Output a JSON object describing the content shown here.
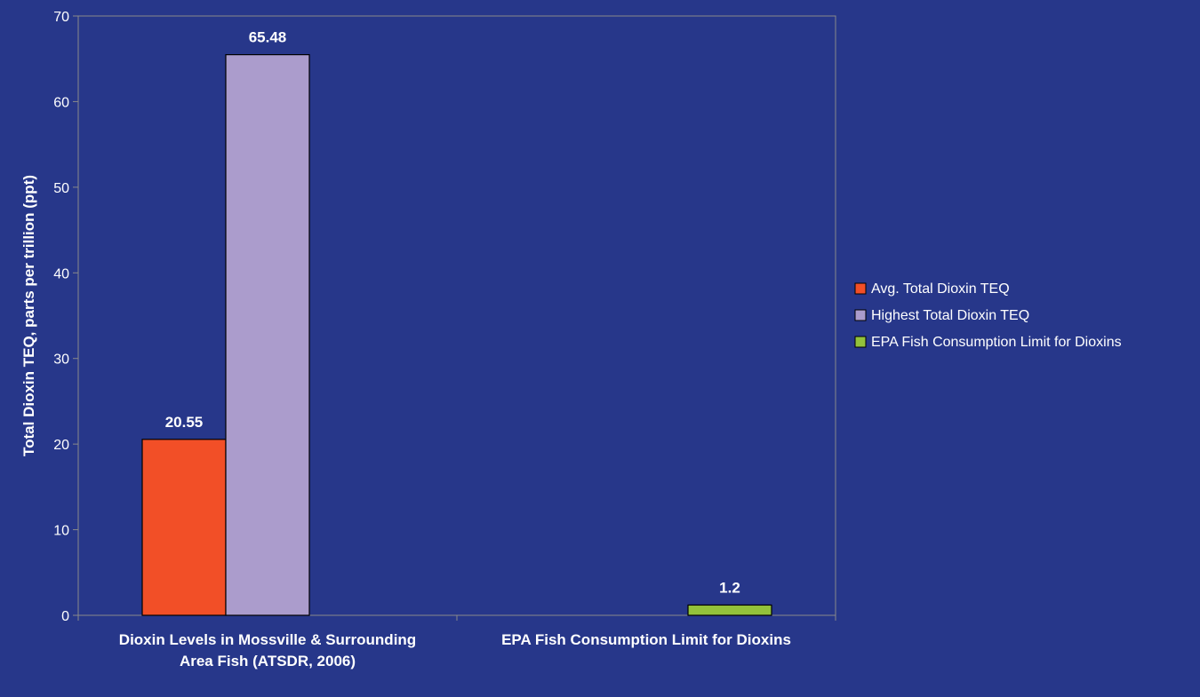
{
  "colors": {
    "background": "#27378a",
    "axis": "#8a8a8a",
    "text": "#ffffff",
    "bar_outline": "#000000"
  },
  "chart_data": {
    "type": "bar",
    "ylabel": "Total Dioxin TEQ, parts per trillion (ppt)",
    "ylim": [
      0,
      70
    ],
    "yticks": [
      0,
      10,
      20,
      30,
      40,
      50,
      60,
      70
    ],
    "grid": false,
    "legend_position": "right",
    "categories": [
      [
        "Dioxin Levels in Mossville & Surrounding",
        "Area Fish  (ATSDR, 2006)"
      ],
      [
        "EPA Fish Consumption Limit for Dioxins"
      ]
    ],
    "series": [
      {
        "name": "Avg. Total Dioxin TEQ",
        "color": "#f24f27",
        "values": [
          20.55,
          null
        ],
        "labels": [
          "20.55",
          null
        ]
      },
      {
        "name": "Highest Total Dioxin TEQ",
        "color": "#ab9ccc",
        "values": [
          65.48,
          null
        ],
        "labels": [
          "65.48",
          null
        ]
      },
      {
        "name": "EPA Fish Consumption Limit for Dioxins",
        "color": "#93c23b",
        "values": [
          null,
          1.2
        ],
        "labels": [
          null,
          "1.2"
        ]
      }
    ]
  }
}
